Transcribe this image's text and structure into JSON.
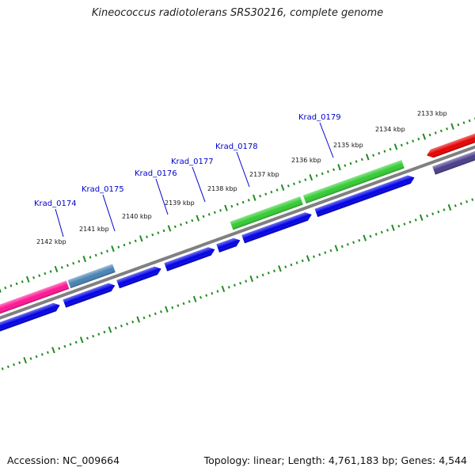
{
  "title": "Kineococcus radiotolerans SRS30216, complete genome",
  "footer": {
    "accession": "Accession: NC_009664",
    "summary": "Topology: linear; Length: 4,761,183 bp; Genes: 4,544"
  },
  "colors": {
    "backbone": "#808080",
    "tick": "#228b22",
    "label_blue": "#0000cc",
    "cds_blue": "#0000e6",
    "cds_green": "#33cc33",
    "cds_pink": "#ff1493",
    "cds_steel": "#4682b4",
    "cds_red": "#e60000",
    "cds_slate": "#483d8b"
  },
  "ruler": {
    "labels": [
      "2133 kbp",
      "2134 kbp",
      "2135 kbp",
      "2136 kbp",
      "2137 kbp",
      "2138 kbp",
      "2139 kbp",
      "2140 kbp",
      "2141 kbp",
      "2142 kbp"
    ]
  },
  "gene_labels": [
    "Krad_0179",
    "Krad_0178",
    "Krad_0177",
    "Krad_0176",
    "Krad_0175",
    "Krad_0174"
  ]
}
